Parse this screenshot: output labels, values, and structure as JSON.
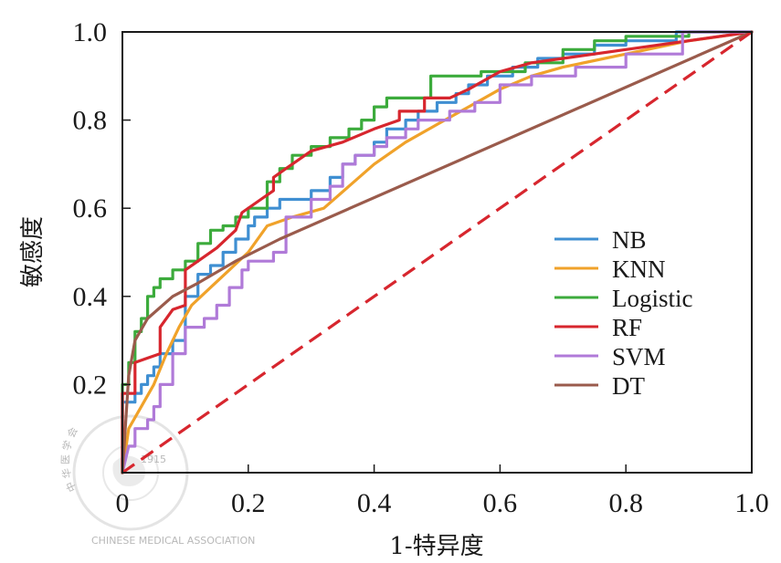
{
  "chart_data": {
    "type": "line",
    "title": "",
    "xlabel": "1-特异度",
    "ylabel": "敏感度",
    "xlim": [
      0,
      1.0
    ],
    "ylim": [
      0,
      1.0
    ],
    "x_ticks": [
      "0",
      "0.2",
      "0.4",
      "0.6",
      "0.8",
      "1.0"
    ],
    "y_ticks": [
      "0.2",
      "0.4",
      "0.6",
      "0.8",
      "1.0"
    ],
    "grid": false,
    "legend_position": "center-right",
    "watermark": {
      "top": "中 华 医 学 会",
      "year": "1915",
      "bottom": "CHINESE MEDICAL ASSOCIATION"
    },
    "reference_line": {
      "name": "chance",
      "color": "#d7262e",
      "style": "dashed",
      "x": [
        0,
        1
      ],
      "y": [
        0,
        1
      ]
    },
    "series": [
      {
        "name": "NB",
        "color": "#3f8fd2",
        "x": [
          0,
          0.0,
          0.02,
          0.02,
          0.03,
          0.03,
          0.04,
          0.04,
          0.05,
          0.05,
          0.06,
          0.06,
          0.08,
          0.08,
          0.1,
          0.1,
          0.12,
          0.12,
          0.14,
          0.14,
          0.16,
          0.16,
          0.18,
          0.18,
          0.2,
          0.2,
          0.21,
          0.21,
          0.23,
          0.23,
          0.25,
          0.25,
          0.27,
          0.27,
          0.3,
          0.3,
          0.33,
          0.33,
          0.35,
          0.35,
          0.37,
          0.37,
          0.4,
          0.4,
          0.42,
          0.42,
          0.45,
          0.45,
          0.47,
          0.47,
          0.5,
          0.5,
          0.53,
          0.53,
          0.55,
          0.55,
          0.58,
          0.58,
          0.62,
          0.62,
          0.66,
          0.66,
          0.7,
          0.7,
          0.75,
          0.75,
          0.8,
          0.8,
          0.88,
          0.88,
          1.0
        ],
        "y": [
          0,
          0.16,
          0.16,
          0.18,
          0.18,
          0.2,
          0.2,
          0.22,
          0.22,
          0.24,
          0.24,
          0.27,
          0.27,
          0.3,
          0.3,
          0.4,
          0.4,
          0.45,
          0.45,
          0.47,
          0.47,
          0.5,
          0.5,
          0.53,
          0.53,
          0.56,
          0.56,
          0.58,
          0.58,
          0.6,
          0.6,
          0.62,
          0.62,
          0.62,
          0.62,
          0.64,
          0.64,
          0.67,
          0.67,
          0.7,
          0.7,
          0.72,
          0.72,
          0.75,
          0.75,
          0.78,
          0.78,
          0.8,
          0.8,
          0.82,
          0.82,
          0.84,
          0.84,
          0.86,
          0.86,
          0.88,
          0.88,
          0.9,
          0.9,
          0.92,
          0.92,
          0.94,
          0.94,
          0.95,
          0.95,
          0.97,
          0.97,
          0.98,
          0.98,
          1.0,
          1.0
        ]
      },
      {
        "name": "KNN",
        "color": "#f0a22a",
        "x": [
          0,
          0.01,
          0.03,
          0.05,
          0.07,
          0.09,
          0.11,
          0.14,
          0.17,
          0.2,
          0.23,
          0.27,
          0.32,
          0.36,
          0.4,
          0.45,
          0.5,
          0.55,
          0.6,
          0.65,
          0.7,
          0.8,
          0.9,
          1.0
        ],
        "y": [
          0,
          0.1,
          0.15,
          0.2,
          0.27,
          0.33,
          0.38,
          0.42,
          0.46,
          0.5,
          0.56,
          0.58,
          0.6,
          0.65,
          0.7,
          0.75,
          0.79,
          0.83,
          0.87,
          0.9,
          0.92,
          0.95,
          0.98,
          1.0
        ]
      },
      {
        "name": "Logistic",
        "color": "#3cab3c",
        "x": [
          0,
          0.0,
          0.01,
          0.01,
          0.02,
          0.02,
          0.03,
          0.03,
          0.04,
          0.04,
          0.05,
          0.05,
          0.06,
          0.06,
          0.08,
          0.08,
          0.1,
          0.1,
          0.12,
          0.12,
          0.14,
          0.14,
          0.16,
          0.16,
          0.18,
          0.18,
          0.2,
          0.2,
          0.23,
          0.23,
          0.25,
          0.25,
          0.27,
          0.27,
          0.3,
          0.3,
          0.33,
          0.33,
          0.36,
          0.36,
          0.38,
          0.38,
          0.4,
          0.4,
          0.42,
          0.42,
          0.45,
          0.45,
          0.49,
          0.49,
          0.52,
          0.52,
          0.57,
          0.57,
          0.6,
          0.6,
          0.64,
          0.64,
          0.7,
          0.7,
          0.75,
          0.75,
          0.8,
          0.8,
          0.9,
          0.9,
          1.0
        ],
        "y": [
          0,
          0.2,
          0.2,
          0.25,
          0.25,
          0.32,
          0.32,
          0.35,
          0.35,
          0.4,
          0.4,
          0.42,
          0.42,
          0.44,
          0.44,
          0.46,
          0.46,
          0.48,
          0.48,
          0.52,
          0.52,
          0.55,
          0.55,
          0.56,
          0.56,
          0.58,
          0.58,
          0.6,
          0.6,
          0.66,
          0.66,
          0.69,
          0.69,
          0.72,
          0.72,
          0.74,
          0.74,
          0.76,
          0.76,
          0.78,
          0.78,
          0.8,
          0.8,
          0.83,
          0.83,
          0.85,
          0.85,
          0.85,
          0.85,
          0.9,
          0.9,
          0.9,
          0.9,
          0.91,
          0.91,
          0.91,
          0.91,
          0.93,
          0.93,
          0.96,
          0.96,
          0.98,
          0.98,
          0.99,
          0.99,
          1.0,
          1.0
        ]
      },
      {
        "name": "RF",
        "color": "#d7262e",
        "x": [
          0,
          0.0,
          0.02,
          0.02,
          0.04,
          0.06,
          0.06,
          0.08,
          0.1,
          0.1,
          0.12,
          0.15,
          0.18,
          0.19,
          0.22,
          0.24,
          0.24,
          0.26,
          0.28,
          0.3,
          0.35,
          0.4,
          0.44,
          0.44,
          0.48,
          0.48,
          0.52,
          0.55,
          0.6,
          0.65,
          0.7,
          0.8,
          1.0
        ],
        "y": [
          0,
          0.18,
          0.18,
          0.25,
          0.26,
          0.27,
          0.33,
          0.37,
          0.38,
          0.46,
          0.48,
          0.51,
          0.55,
          0.59,
          0.62,
          0.64,
          0.67,
          0.69,
          0.71,
          0.73,
          0.75,
          0.78,
          0.8,
          0.82,
          0.82,
          0.85,
          0.85,
          0.87,
          0.91,
          0.93,
          0.94,
          0.96,
          1.0
        ]
      },
      {
        "name": "SVM",
        "color": "#b07ad8",
        "x": [
          0,
          0.01,
          0.02,
          0.02,
          0.04,
          0.04,
          0.05,
          0.05,
          0.06,
          0.06,
          0.08,
          0.08,
          0.1,
          0.1,
          0.13,
          0.13,
          0.15,
          0.15,
          0.17,
          0.17,
          0.19,
          0.19,
          0.2,
          0.2,
          0.24,
          0.24,
          0.26,
          0.26,
          0.3,
          0.3,
          0.33,
          0.33,
          0.35,
          0.35,
          0.37,
          0.37,
          0.4,
          0.4,
          0.42,
          0.42,
          0.45,
          0.45,
          0.47,
          0.47,
          0.52,
          0.52,
          0.56,
          0.56,
          0.6,
          0.6,
          0.65,
          0.65,
          0.72,
          0.72,
          0.8,
          0.8,
          0.89,
          0.89,
          1.0
        ],
        "y": [
          0,
          0.06,
          0.06,
          0.1,
          0.1,
          0.12,
          0.12,
          0.15,
          0.15,
          0.2,
          0.2,
          0.27,
          0.27,
          0.33,
          0.33,
          0.35,
          0.35,
          0.38,
          0.38,
          0.42,
          0.42,
          0.46,
          0.46,
          0.48,
          0.48,
          0.5,
          0.5,
          0.58,
          0.58,
          0.62,
          0.62,
          0.65,
          0.65,
          0.7,
          0.7,
          0.72,
          0.72,
          0.74,
          0.74,
          0.76,
          0.76,
          0.78,
          0.78,
          0.8,
          0.8,
          0.82,
          0.82,
          0.84,
          0.84,
          0.88,
          0.88,
          0.9,
          0.9,
          0.92,
          0.92,
          0.95,
          0.95,
          1.0,
          1.0
        ]
      },
      {
        "name": "DT",
        "color": "#9a5b4c",
        "x": [
          0,
          0.01,
          0.02,
          0.04,
          0.08,
          0.12,
          0.18,
          0.25,
          1.0
        ],
        "y": [
          0,
          0.22,
          0.3,
          0.35,
          0.4,
          0.43,
          0.48,
          0.53,
          1.0
        ]
      }
    ]
  }
}
